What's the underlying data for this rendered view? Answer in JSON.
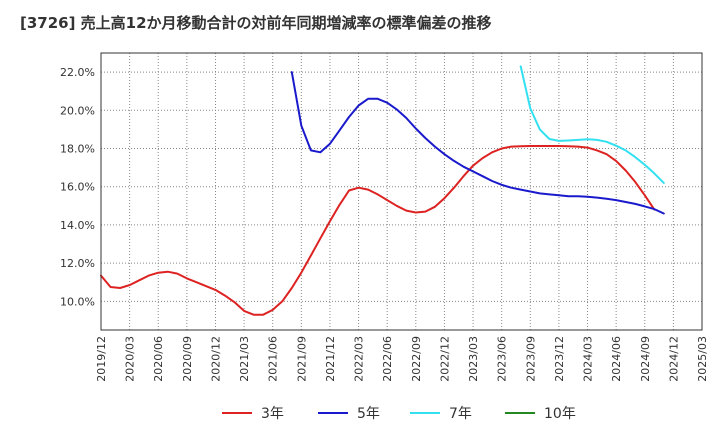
{
  "chart_data": {
    "type": "line",
    "title": "[3726]  売上高12か月移動合計の対前年同期増減率の標準偏差の推移",
    "xlabel": "",
    "ylabel": "",
    "ylim": [
      8.5,
      23.0
    ],
    "y_ticks": [
      10.0,
      12.0,
      14.0,
      16.0,
      18.0,
      20.0,
      22.0
    ],
    "y_tick_labels": [
      "10.0%",
      "12.0%",
      "14.0%",
      "16.0%",
      "18.0%",
      "20.0%",
      "22.0%"
    ],
    "x_tick_labels": [
      "2019/12",
      "2020/03",
      "2020/06",
      "2020/09",
      "2020/12",
      "2021/03",
      "2021/06",
      "2021/09",
      "2021/12",
      "2022/03",
      "2022/06",
      "2022/09",
      "2022/12",
      "2023/03",
      "2023/06",
      "2023/09",
      "2023/12",
      "2024/03",
      "2024/06",
      "2024/09",
      "2024/12",
      "2025/03"
    ],
    "x_start": "2019/12",
    "grid": true,
    "legend_position": "bottom",
    "series": [
      {
        "name": "3年",
        "color": "#dd2222",
        "start": "2019/12",
        "values": [
          11.35,
          10.75,
          10.7,
          10.85,
          11.1,
          11.35,
          11.5,
          11.55,
          11.45,
          11.2,
          11.0,
          10.8,
          10.6,
          10.3,
          9.95,
          9.5,
          9.3,
          9.3,
          9.55,
          10.0,
          10.7,
          11.5,
          12.4,
          13.3,
          14.2,
          15.05,
          15.8,
          15.95,
          15.85,
          15.6,
          15.3,
          15.0,
          14.75,
          14.65,
          14.7,
          14.95,
          15.4,
          15.95,
          16.55,
          17.1,
          17.5,
          17.8,
          18.0,
          18.1,
          18.12,
          18.13,
          18.13,
          18.13,
          18.13,
          18.12,
          18.1,
          18.05,
          17.9,
          17.7,
          17.35,
          16.85,
          16.25,
          15.55,
          14.8
        ]
      },
      {
        "name": "5年",
        "color": "#1a1acc",
        "start": "2021/08",
        "values": [
          22.0,
          19.2,
          17.9,
          17.8,
          18.25,
          18.95,
          19.65,
          20.25,
          20.6,
          20.6,
          20.4,
          20.05,
          19.6,
          19.05,
          18.55,
          18.1,
          17.7,
          17.35,
          17.05,
          16.8,
          16.55,
          16.3,
          16.1,
          15.95,
          15.85,
          15.75,
          15.65,
          15.6,
          15.55,
          15.5,
          15.5,
          15.47,
          15.43,
          15.37,
          15.3,
          15.2,
          15.1,
          14.97,
          14.83,
          14.6
        ]
      },
      {
        "name": "7年",
        "color": "#33e0f0",
        "start": "2023/08",
        "values": [
          22.3,
          20.1,
          19.0,
          18.5,
          18.4,
          18.42,
          18.45,
          18.48,
          18.45,
          18.35,
          18.15,
          17.9,
          17.55,
          17.15,
          16.7,
          16.2
        ]
      },
      {
        "name": "10年",
        "color": "#228822",
        "start": "2019/12",
        "values": []
      }
    ]
  }
}
